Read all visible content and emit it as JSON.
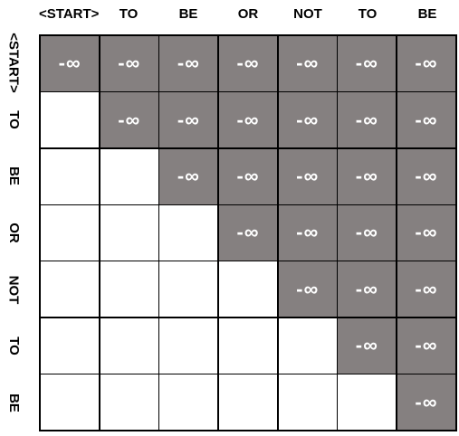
{
  "columns": [
    "<START>",
    "TO",
    "BE",
    "OR",
    "NOT",
    "TO",
    "BE"
  ],
  "rows": [
    "<START>",
    "TO",
    "BE",
    "OR",
    "NOT",
    "TO",
    "BE"
  ],
  "mask_value": "-∞",
  "colors": {
    "masked": "#858080",
    "unmasked": "#ffffff",
    "border": "#000000"
  },
  "masked_cells": [
    [
      1,
      1,
      1,
      1,
      1,
      1,
      1
    ],
    [
      0,
      1,
      1,
      1,
      1,
      1,
      1
    ],
    [
      0,
      0,
      1,
      1,
      1,
      1,
      1
    ],
    [
      0,
      0,
      0,
      1,
      1,
      1,
      1
    ],
    [
      0,
      0,
      0,
      0,
      1,
      1,
      1
    ],
    [
      0,
      0,
      0,
      0,
      0,
      1,
      1
    ],
    [
      0,
      0,
      0,
      0,
      0,
      0,
      1
    ]
  ]
}
